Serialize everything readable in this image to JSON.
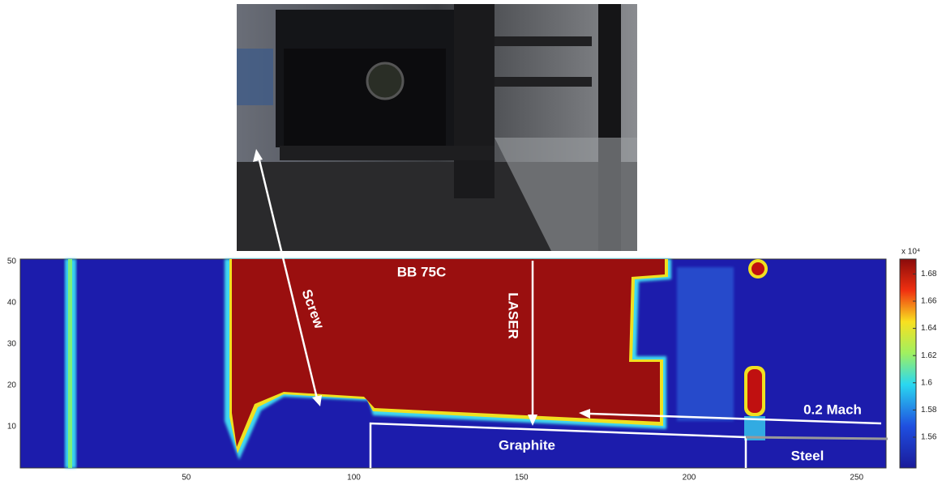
{
  "figure": {
    "heatmap": {
      "xticks": [
        50,
        100,
        150,
        200,
        250
      ],
      "yticks": [
        10,
        20,
        30,
        40,
        50
      ]
    },
    "colorbar": {
      "exponent": "x 10⁴",
      "ticks": [
        "1.56",
        "1.58",
        "1.6",
        "1.62",
        "1.64",
        "1.66",
        "1.68"
      ]
    },
    "annotations": {
      "bb": "BB 75C",
      "laser": "LASER",
      "screw": "Screw",
      "mach": "0.2 Mach",
      "graphite": "Graphite",
      "steel": "Steel"
    }
  }
}
